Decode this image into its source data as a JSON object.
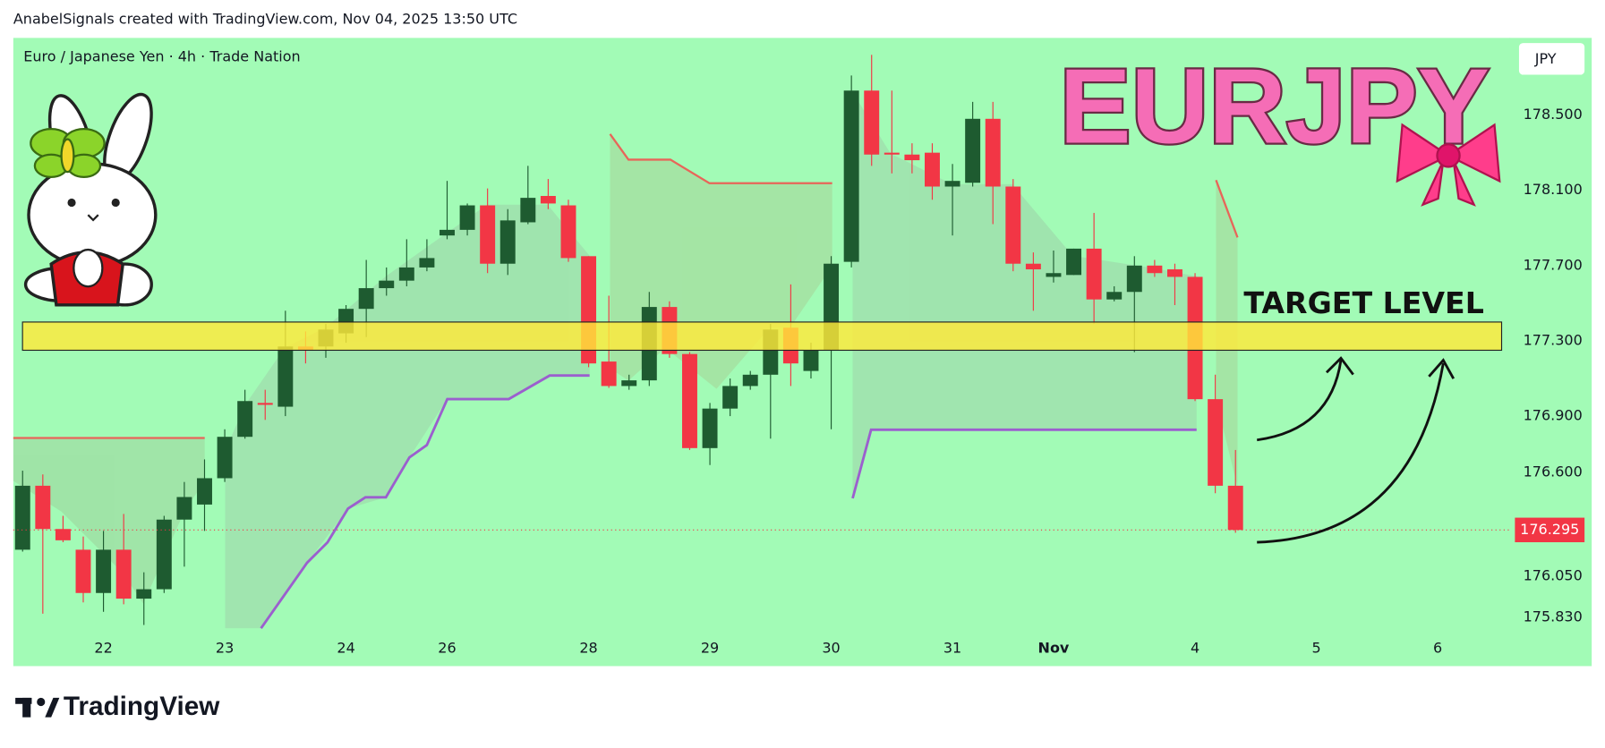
{
  "header": "AnabelSignals created with TradingView.com, Nov 04, 2025 13:50 UTC",
  "footer": "TradingView",
  "chart_data": {
    "type": "candlestick",
    "title": "Euro / Japanese Yen · 4h · Trade Nation",
    "symbol": "EURJPY",
    "currency": "JPY",
    "annotation": "TARGET LEVEL",
    "target_zone": [
      177.25,
      177.4
    ],
    "last_price": 176.295,
    "up_color": "#1e5b30",
    "down_color": "#f23645",
    "x": [
      0,
      1,
      2,
      3,
      4,
      5,
      6,
      7,
      8,
      9,
      10,
      11,
      12,
      13,
      14,
      15,
      16,
      17,
      18,
      19,
      20,
      21,
      22,
      23,
      24,
      25,
      26,
      27,
      28,
      29,
      30,
      31,
      32,
      33,
      34,
      35,
      36,
      37,
      38,
      39,
      40,
      41,
      42,
      43,
      44,
      45,
      46,
      47,
      48,
      49,
      50,
      51,
      52,
      53,
      54,
      55,
      56,
      57,
      58,
      59,
      60
    ],
    "open": [
      176.19,
      176.53,
      176.3,
      176.19,
      175.96,
      176.19,
      175.93,
      175.98,
      176.35,
      176.43,
      176.57,
      176.79,
      176.97,
      176.95,
      177.27,
      177.27,
      177.34,
      177.47,
      177.58,
      177.62,
      177.69,
      177.86,
      177.89,
      178.02,
      177.71,
      177.93,
      178.07,
      178.02,
      177.75,
      177.19,
      177.06,
      177.09,
      177.48,
      177.23,
      176.73,
      176.94,
      177.06,
      177.12,
      177.37,
      177.14,
      177.25,
      177.72,
      178.63,
      178.3,
      178.29,
      178.3,
      178.12,
      178.14,
      178.48,
      178.12,
      177.71,
      177.64,
      177.65,
      177.79,
      177.52,
      177.56,
      177.7,
      177.68,
      177.64,
      176.99,
      176.53
    ],
    "high": [
      176.61,
      176.59,
      176.37,
      176.26,
      176.29,
      176.38,
      176.07,
      176.37,
      176.55,
      176.67,
      176.83,
      177.04,
      177.04,
      177.46,
      177.35,
      177.39,
      177.49,
      177.73,
      177.69,
      177.84,
      177.84,
      178.15,
      178.03,
      178.11,
      178.0,
      178.23,
      178.16,
      178.05,
      177.75,
      177.54,
      177.12,
      177.56,
      177.51,
      177.24,
      176.97,
      177.1,
      177.14,
      177.39,
      177.6,
      177.29,
      177.75,
      178.71,
      178.82,
      178.63,
      178.35,
      178.35,
      178.24,
      178.57,
      178.57,
      178.16,
      177.77,
      177.78,
      177.79,
      177.98,
      177.59,
      177.75,
      177.73,
      177.71,
      177.66,
      177.12,
      176.72
    ],
    "low": [
      176.18,
      175.85,
      176.23,
      175.91,
      175.86,
      175.9,
      175.79,
      175.96,
      176.1,
      176.29,
      176.55,
      176.78,
      176.88,
      176.9,
      177.18,
      177.21,
      177.29,
      177.32,
      177.54,
      177.59,
      177.67,
      177.84,
      177.86,
      177.66,
      177.65,
      177.92,
      178.0,
      177.72,
      177.16,
      177.05,
      177.04,
      177.06,
      177.21,
      176.72,
      176.64,
      176.9,
      177.04,
      176.78,
      177.06,
      177.1,
      176.83,
      177.69,
      178.23,
      178.19,
      178.19,
      178.05,
      177.86,
      178.12,
      177.92,
      177.67,
      177.46,
      177.61,
      177.65,
      177.39,
      177.51,
      177.24,
      177.64,
      177.49,
      176.98,
      176.49,
      176.28
    ],
    "close": [
      176.53,
      176.3,
      176.24,
      175.96,
      176.19,
      175.93,
      175.98,
      176.35,
      176.47,
      176.57,
      176.79,
      176.98,
      176.96,
      177.27,
      177.25,
      177.36,
      177.47,
      177.58,
      177.62,
      177.69,
      177.74,
      177.89,
      178.02,
      177.71,
      177.94,
      178.06,
      178.03,
      177.74,
      177.18,
      177.06,
      177.09,
      177.48,
      177.23,
      176.73,
      176.94,
      177.06,
      177.12,
      177.36,
      177.18,
      177.25,
      177.71,
      178.63,
      178.29,
      178.29,
      178.26,
      178.12,
      178.15,
      178.48,
      178.12,
      177.71,
      177.68,
      177.66,
      177.79,
      177.52,
      177.56,
      177.7,
      177.66,
      177.64,
      176.99,
      176.53,
      176.295
    ],
    "xlim": [
      -0.46,
      73.57
    ],
    "xticks": [
      {
        "value": 4,
        "label": "22"
      },
      {
        "value": 10,
        "label": "23"
      },
      {
        "value": 16,
        "label": "24"
      },
      {
        "value": 21,
        "label": "26"
      },
      {
        "value": 28,
        "label": "28"
      },
      {
        "value": 34,
        "label": "29"
      },
      {
        "value": 40,
        "label": "30"
      },
      {
        "value": 46,
        "label": "31"
      },
      {
        "value": 51,
        "label": "Nov"
      },
      {
        "value": 58,
        "label": "4"
      },
      {
        "value": 64,
        "label": "5"
      },
      {
        "value": 70,
        "label": "6"
      }
    ],
    "ylim": [
      175.74,
      178.91
    ],
    "yticks": [
      {
        "value": 175.83,
        "label": "175.830"
      },
      {
        "value": 176.05,
        "label": "176.050"
      },
      {
        "value": 176.6,
        "label": "176.600"
      },
      {
        "value": 176.9,
        "label": "176.900"
      },
      {
        "value": 177.3,
        "label": "177.300"
      },
      {
        "value": 177.7,
        "label": "177.700"
      },
      {
        "value": 178.1,
        "label": "178.100"
      },
      {
        "value": 178.5,
        "label": "178.500"
      }
    ],
    "grid": false
  }
}
